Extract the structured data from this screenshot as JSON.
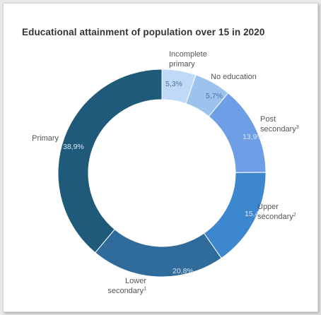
{
  "chart_data": {
    "type": "pie",
    "variant": "donut",
    "title": "Educational attainment of population over 15 in 2020",
    "categories": [
      "Incomplete primary",
      "No education",
      "Post secondary",
      "Upper secondary",
      "Lower secondary",
      "Primary"
    ],
    "values": [
      5.3,
      5.7,
      13.9,
      15.4,
      20.8,
      38.9
    ],
    "value_labels": [
      "5,3%",
      "5,7%",
      "13,9%",
      "15,4%",
      "20,8%",
      "38,9%"
    ],
    "label_lines": [
      [
        "Incomplete",
        "primary"
      ],
      [
        "No education"
      ],
      [
        "Post",
        "secondary"
      ],
      [
        "Upper",
        "secondary"
      ],
      [
        "Lower",
        "secondary"
      ],
      [
        "Primary"
      ]
    ],
    "label_superscripts": [
      "",
      "",
      "3",
      "2",
      "1",
      ""
    ],
    "colors": [
      "#bfd9f6",
      "#9cc3ee",
      "#6d9ee6",
      "#3d87cf",
      "#2f6c9c",
      "#1f5a7a"
    ],
    "legend": "none"
  }
}
